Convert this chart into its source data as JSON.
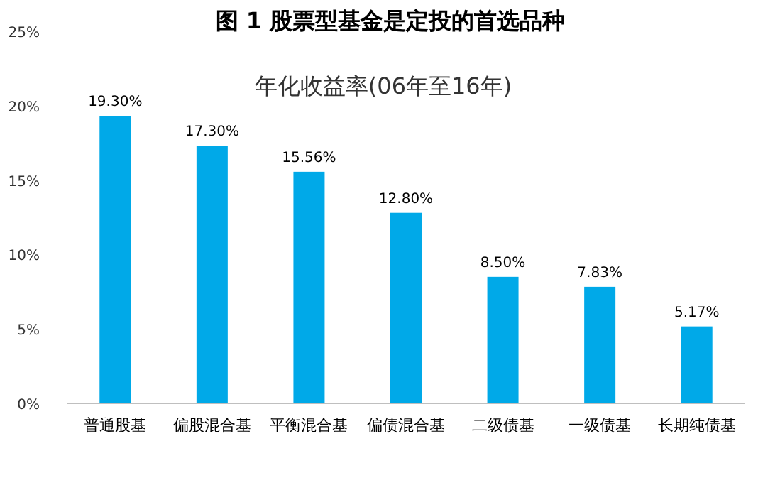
{
  "chart_data": {
    "type": "bar",
    "title": "图 1 股票型基金是定投的首选品种",
    "subtitle": "年化收益率(06年至16年)",
    "categories": [
      "普通股基",
      "偏股混合基",
      "平衡混合基",
      "偏债混合基",
      "二级债基",
      "一级债基",
      "长期纯债基"
    ],
    "values": [
      19.3,
      17.3,
      15.56,
      12.8,
      8.5,
      7.83,
      5.17
    ],
    "value_labels": [
      "19.30%",
      "17.30%",
      "15.56%",
      "12.80%",
      "8.50%",
      "7.83%",
      "5.17%"
    ],
    "color": "#00a9e8",
    "ylim": [
      0,
      25
    ],
    "yticks": [
      {
        "value": 0,
        "label": "0%"
      },
      {
        "value": 5,
        "label": "5%"
      },
      {
        "value": 10,
        "label": "10%"
      },
      {
        "value": 15,
        "label": "15%"
      },
      {
        "value": 20,
        "label": "20%"
      },
      {
        "value": 25,
        "label": "25%"
      }
    ]
  }
}
